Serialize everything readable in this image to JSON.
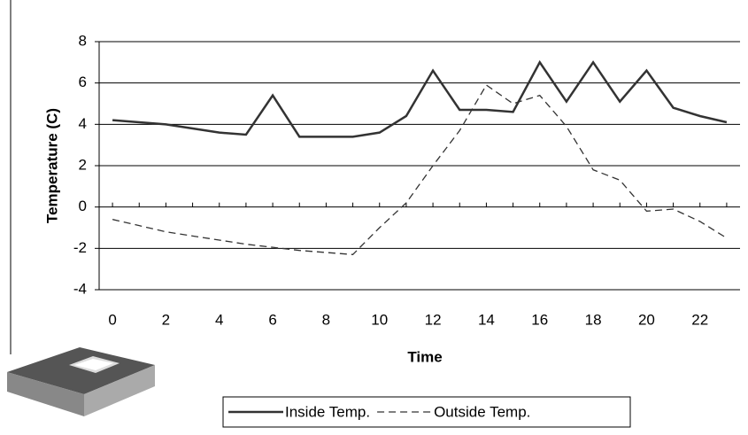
{
  "chart_data": {
    "type": "line",
    "x_label": "Time",
    "y_label": "Temperature (C)",
    "x": [
      0,
      1,
      2,
      3,
      4,
      5,
      6,
      7,
      8,
      9,
      10,
      11,
      12,
      13,
      14,
      15,
      16,
      17,
      18,
      19,
      20,
      21,
      22,
      23
    ],
    "series": [
      {
        "name": "Inside Temp.",
        "color": "#333333",
        "dash": false,
        "values": [
          4.2,
          4.1,
          4.0,
          3.8,
          3.6,
          3.5,
          5.4,
          3.4,
          3.4,
          3.4,
          3.6,
          4.4,
          6.6,
          4.7,
          4.7,
          4.6,
          7.0,
          5.1,
          7.0,
          5.1,
          6.6,
          4.8,
          4.4,
          4.1
        ]
      },
      {
        "name": "Outside Temp.",
        "color": "#333333",
        "dash": true,
        "values": [
          -0.6,
          -0.9,
          -1.2,
          -1.4,
          -1.6,
          -1.8,
          -1.95,
          -2.1,
          -2.2,
          -2.3,
          -1.0,
          0.2,
          2.0,
          3.7,
          5.9,
          5.0,
          5.4,
          3.9,
          1.8,
          1.3,
          -0.2,
          -0.1,
          -0.7,
          -1.5
        ]
      }
    ],
    "xlim": [
      -0.5,
      23.5
    ],
    "xticks": [
      0,
      2,
      4,
      6,
      8,
      10,
      12,
      14,
      16,
      18,
      20,
      22
    ],
    "ylim": [
      -4,
      8
    ],
    "yticks": [
      -4,
      -2,
      0,
      2,
      4,
      6,
      8
    ],
    "grid": true
  }
}
